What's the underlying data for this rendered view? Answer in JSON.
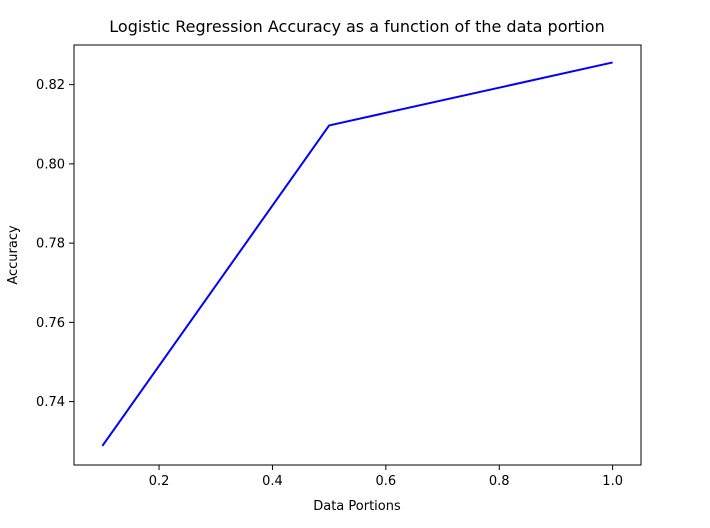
{
  "chart_data": {
    "type": "line",
    "title": "Logistic Regression Accuracy as a function of the data portion",
    "xlabel": "Data Portions",
    "ylabel": "Accuracy",
    "xlim": [
      0.05,
      1.05
    ],
    "ylim": [
      0.724,
      0.83
    ],
    "xticks": [
      0.2,
      0.4,
      0.6,
      0.8,
      1.0
    ],
    "xtick_labels": [
      "0.2",
      "0.4",
      "0.6",
      "0.8",
      "1.0"
    ],
    "yticks": [
      0.74,
      0.76,
      0.78,
      0.8,
      0.82
    ],
    "ytick_labels": [
      "0.74",
      "0.76",
      "0.78",
      "0.80",
      "0.82"
    ],
    "grid": false,
    "series": [
      {
        "color": "#0000ff",
        "x": [
          0.1,
          0.5,
          1.0
        ],
        "y": [
          0.7288,
          0.8097,
          0.8256
        ]
      }
    ]
  }
}
